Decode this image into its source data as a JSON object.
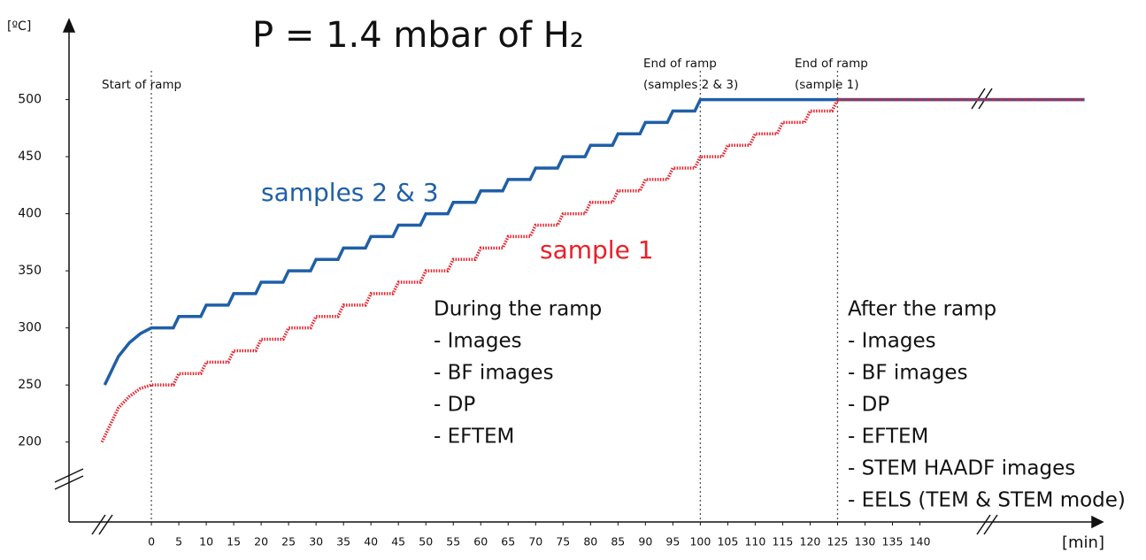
{
  "chart_data": {
    "type": "line",
    "title": "P = 1.4 mbar of H₂",
    "y_label": "[ºC]",
    "x_label": "[min]",
    "xlim": [
      -15,
      172
    ],
    "ylim": [
      130,
      564
    ],
    "yticks": [
      200,
      250,
      300,
      350,
      400,
      450,
      500
    ],
    "xticks": [
      0,
      5,
      10,
      15,
      20,
      25,
      30,
      35,
      40,
      45,
      50,
      55,
      60,
      65,
      70,
      75,
      80,
      85,
      90,
      95,
      100,
      105,
      110,
      115,
      120,
      125,
      130,
      135,
      140
    ],
    "series": [
      {
        "name": "samples 2 & 3",
        "color": "#1f5fa8",
        "x": [
          -8.5,
          -6,
          -4,
          -2,
          0,
          4,
          5,
          9,
          10,
          14,
          15,
          19,
          20,
          24,
          25,
          29,
          30,
          34,
          35,
          39,
          40,
          44,
          45,
          49,
          50,
          54,
          55,
          59,
          60,
          64,
          65,
          69,
          70,
          74,
          75,
          79,
          80,
          84,
          85,
          89,
          90,
          94,
          95,
          99,
          100,
          170
        ],
        "values": [
          250,
          275,
          287,
          295,
          300,
          300,
          310,
          310,
          320,
          320,
          330,
          330,
          340,
          340,
          350,
          350,
          360,
          360,
          370,
          370,
          380,
          380,
          390,
          390,
          400,
          400,
          410,
          410,
          420,
          420,
          430,
          430,
          440,
          440,
          450,
          450,
          460,
          460,
          470,
          470,
          480,
          480,
          490,
          490,
          500,
          500
        ]
      },
      {
        "name": "sample 1",
        "color": "#e8202a",
        "x": [
          -9,
          -6,
          -4,
          -2,
          0,
          4,
          5,
          9,
          10,
          14,
          15,
          19,
          20,
          24,
          25,
          29,
          30,
          34,
          35,
          39,
          40,
          44,
          45,
          49,
          50,
          54,
          55,
          59,
          60,
          64,
          65,
          69,
          70,
          74,
          75,
          79,
          80,
          84,
          85,
          89,
          90,
          94,
          95,
          99,
          100,
          104,
          105,
          109,
          110,
          114,
          115,
          119,
          120,
          124,
          125,
          170
        ],
        "values": [
          200,
          230,
          240,
          247,
          250,
          250,
          260,
          260,
          270,
          270,
          280,
          280,
          290,
          290,
          300,
          300,
          310,
          310,
          320,
          320,
          330,
          330,
          340,
          340,
          350,
          350,
          360,
          360,
          370,
          370,
          380,
          380,
          390,
          390,
          400,
          400,
          410,
          410,
          420,
          420,
          430,
          430,
          440,
          440,
          450,
          450,
          460,
          460,
          470,
          470,
          480,
          480,
          490,
          490,
          500,
          500
        ]
      }
    ],
    "vlines": [
      {
        "x": 0,
        "label": [
          "Start of ramp"
        ]
      },
      {
        "x": 100,
        "label": [
          "End of ramp",
          "(samples 2 & 3)"
        ]
      },
      {
        "x": 125,
        "label": [
          "End of ramp",
          "(sample 1)"
        ]
      }
    ],
    "notes": [
      {
        "title": "During the ramp",
        "items": [
          "- Images",
          "- BF images",
          "- DP",
          "- EFTEM"
        ]
      },
      {
        "title": "After the ramp",
        "items": [
          "- Images",
          "- BF images",
          "- DP",
          "- EFTEM",
          "- STEM HAADF images",
          "- EELS (TEM & STEM mode)"
        ]
      }
    ]
  }
}
